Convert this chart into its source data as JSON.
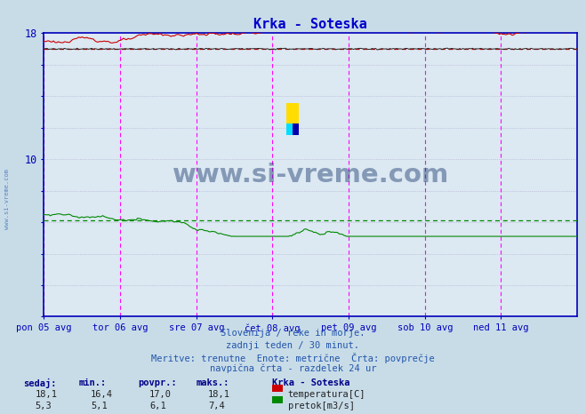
{
  "title": "Krka - Soteska",
  "title_color": "#0000cc",
  "bg_color": "#c8dce8",
  "plot_bg_color": "#dce8f2",
  "ylim": [
    0,
    18
  ],
  "xlim": [
    0,
    336
  ],
  "ytick_vals": [
    0,
    2,
    4,
    6,
    8,
    10,
    12,
    14,
    16,
    18
  ],
  "ytick_labeled": [
    10,
    18
  ],
  "xtick_positions": [
    0,
    48,
    96,
    144,
    192,
    240,
    288
  ],
  "xtick_labels": [
    "pon 05 avg",
    "tor 06 avg",
    "sre 07 avg",
    "čet 08 avg",
    "pet 09 avg",
    "sob 10 avg",
    "ned 11 avg"
  ],
  "vline_positions": [
    0,
    48,
    96,
    144,
    192,
    240,
    288,
    336
  ],
  "temp_color": "#cc0000",
  "height_color": "#222222",
  "flow_color": "#008800",
  "avg_temp": 17.0,
  "avg_flow": 6.1,
  "temp_start": 17.1,
  "temp_end": 18.1,
  "flow_start": 6.5,
  "flow_end": 5.3,
  "watermark_text": "www.si-vreme.com",
  "watermark_color": "#1a3a6e",
  "axis_color": "#0000bb",
  "grid_color": "#aaaacc",
  "vline_color": "#ff00ff",
  "subtitle_lines": [
    "Slovenija / reke in morje.",
    "zadnji teden / 30 minut.",
    "Meritve: trenutne  Enote: metrične  Črta: povprečje",
    "navpična črta - razdelek 24 ur"
  ],
  "table_headers": [
    "sedaj:",
    "min.:",
    "povpr.:",
    "maks.:"
  ],
  "table_row1": [
    "18,1",
    "16,4",
    "17,0",
    "18,1"
  ],
  "table_row2": [
    "5,3",
    "5,1",
    "6,1",
    "7,4"
  ],
  "legend_title": "Krka - Soteska",
  "legend_items": [
    "temperatura[C]",
    "pretok[m3/s]"
  ],
  "legend_colors": [
    "#cc0000",
    "#008800"
  ]
}
